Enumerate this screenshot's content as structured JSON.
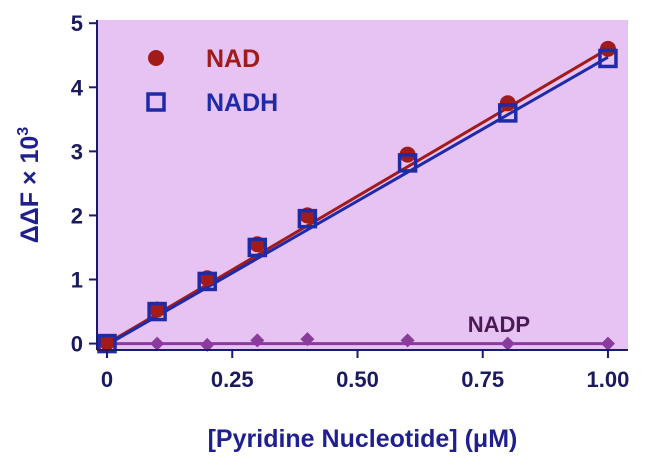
{
  "colors": {
    "plot_bg": "#e6c3f3",
    "axis": "#1a1a6e",
    "nad": "#a11b1b",
    "nadh": "#1f2aa8",
    "nadp": "#8a3c9a",
    "nadp_label": "#4a1a55",
    "axis_title": "#1f1f8f"
  },
  "chart_data": {
    "type": "scatter",
    "xlabel": "[Pyridine Nucleotide] (μM)",
    "ylabel": "ΔΔF × 10",
    "ylabel_superscript": "3",
    "xlim": [
      -0.02,
      1.04
    ],
    "ylim": [
      -0.1,
      5.05
    ],
    "x_ticks": [
      0,
      0.25,
      0.5,
      0.75,
      1.0
    ],
    "x_tick_labels": [
      "0",
      "0.25",
      "0.50",
      "0.75",
      "1.00"
    ],
    "y_ticks": [
      0,
      1,
      2,
      3,
      4,
      5
    ],
    "y_tick_labels": [
      "0",
      "1",
      "2",
      "3",
      "4",
      "5"
    ],
    "grid": false,
    "legend_position": "top-left",
    "series": [
      {
        "name": "NAD",
        "marker": "circle",
        "color_key": "nad",
        "x": [
          0,
          0.1,
          0.2,
          0.3,
          0.4,
          0.6,
          0.8,
          1.0
        ],
        "y": [
          0.02,
          0.53,
          1.02,
          1.55,
          2.0,
          2.95,
          3.75,
          4.6
        ],
        "fit": {
          "x0": 0,
          "y0": 0.0,
          "x1": 1.0,
          "y1": 4.6
        },
        "in_legend": true
      },
      {
        "name": "NADH",
        "marker": "square",
        "color_key": "nadh",
        "x": [
          0,
          0.1,
          0.2,
          0.3,
          0.4,
          0.6,
          0.8,
          1.0
        ],
        "y": [
          0.0,
          0.5,
          0.97,
          1.5,
          1.95,
          2.82,
          3.6,
          4.45
        ],
        "fit": {
          "x0": 0,
          "y0": -0.02,
          "x1": 1.0,
          "y1": 4.47
        },
        "in_legend": true
      },
      {
        "name": "NADP",
        "marker": "diamond",
        "color_key": "nadp",
        "x": [
          0,
          0.1,
          0.2,
          0.3,
          0.4,
          0.6,
          0.8,
          1.0
        ],
        "y": [
          0.0,
          0.0,
          -0.02,
          0.05,
          0.07,
          0.05,
          0.0,
          0.0
        ],
        "fit": {
          "x0": 0,
          "y0": 0.0,
          "x1": 1.0,
          "y1": 0.0
        },
        "in_legend": false,
        "label": "NADP",
        "label_at": {
          "x": 0.72,
          "y": 0.18
        }
      }
    ],
    "legend": [
      {
        "label": "NAD",
        "marker": "circle",
        "color_key": "nad"
      },
      {
        "label": "NADH",
        "marker": "square",
        "color_key": "nadh"
      }
    ]
  }
}
